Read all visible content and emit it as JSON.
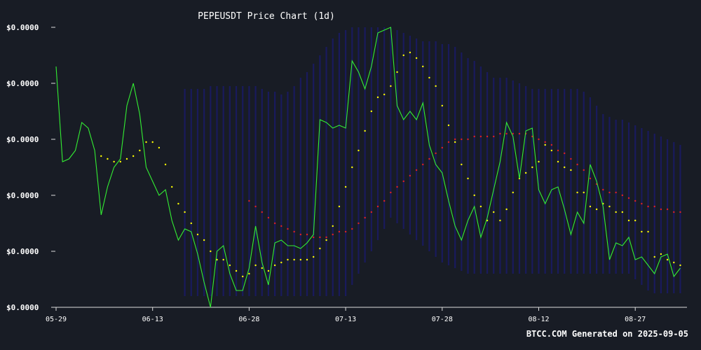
{
  "chart_data": {
    "type": "line",
    "title": "PEPEUSDT Price Chart (1d)",
    "xlabel": "",
    "ylabel": "",
    "grid": false,
    "legend": "none",
    "x_ticks": [
      "05-29",
      "06-13",
      "06-28",
      "07-13",
      "07-28",
      "08-12",
      "08-27"
    ],
    "y_ticks": [
      "$0.0000",
      "$0.0000",
      "$0.0000",
      "$0.0000",
      "$0.0000",
      "$0.0000"
    ],
    "y_index_range": [
      0,
      100
    ],
    "note_units": "y values are relative price levels (0 = bottom tick, 100 = top tick); actual tick labels all read $0.0000",
    "x_dates": [
      "05-29",
      "05-30",
      "05-31",
      "06-01",
      "06-02",
      "06-03",
      "06-04",
      "06-05",
      "06-06",
      "06-07",
      "06-08",
      "06-09",
      "06-10",
      "06-11",
      "06-12",
      "06-13",
      "06-14",
      "06-15",
      "06-16",
      "06-17",
      "06-18",
      "06-19",
      "06-20",
      "06-21",
      "06-22",
      "06-23",
      "06-24",
      "06-25",
      "06-26",
      "06-27",
      "06-28",
      "06-29",
      "06-30",
      "07-01",
      "07-02",
      "07-03",
      "07-04",
      "07-05",
      "07-06",
      "07-07",
      "07-08",
      "07-09",
      "07-10",
      "07-11",
      "07-12",
      "07-13",
      "07-14",
      "07-15",
      "07-16",
      "07-17",
      "07-18",
      "07-19",
      "07-20",
      "07-21",
      "07-22",
      "07-23",
      "07-24",
      "07-25",
      "07-26",
      "07-27",
      "07-28",
      "07-29",
      "07-30",
      "07-31",
      "08-01",
      "08-02",
      "08-03",
      "08-04",
      "08-05",
      "08-06",
      "08-07",
      "08-08",
      "08-09",
      "08-10",
      "08-11",
      "08-12",
      "08-13",
      "08-14",
      "08-15",
      "08-16",
      "08-17",
      "08-18",
      "08-19",
      "08-20",
      "08-21",
      "08-22",
      "08-23",
      "08-24",
      "08-25",
      "08-26",
      "08-27",
      "08-28",
      "08-29",
      "08-30",
      "08-31",
      "09-01",
      "09-02",
      "09-03",
      "09-04"
    ],
    "series": [
      {
        "role": "price",
        "color": "#33ee33",
        "values": [
          86,
          52,
          53,
          56,
          66,
          64,
          56,
          33,
          43,
          50,
          53,
          72,
          80,
          69,
          50,
          45,
          40,
          42,
          31,
          24,
          28,
          27,
          19,
          9,
          0,
          20,
          22,
          12,
          6,
          6,
          14,
          29,
          16,
          8,
          23,
          24,
          22,
          22,
          21,
          23,
          26,
          67,
          66,
          64,
          65,
          64,
          88,
          84,
          78,
          86,
          98,
          99,
          100,
          72,
          67,
          70,
          67,
          73,
          58,
          51,
          48,
          38,
          29,
          24,
          31,
          36,
          25,
          32,
          42,
          52,
          66,
          61,
          46,
          63,
          64,
          42,
          37,
          42,
          43,
          35,
          26,
          34,
          30,
          51,
          45,
          36,
          17,
          23,
          22,
          25,
          17,
          18,
          15,
          12,
          18,
          19,
          11,
          14
        ]
      },
      {
        "role": "moving-average-short",
        "color": "#ffff00",
        "values": [
          null,
          null,
          null,
          null,
          null,
          null,
          null,
          54,
          53,
          52,
          52,
          53,
          54,
          56,
          59,
          59,
          57,
          51,
          43,
          37,
          34,
          30,
          26,
          24,
          20,
          17,
          17,
          15,
          13,
          11,
          12,
          15,
          14,
          13,
          15,
          16,
          17,
          17,
          17,
          17,
          18,
          21,
          24,
          29,
          36,
          43,
          50,
          56,
          63,
          70,
          75,
          76,
          79,
          84,
          90,
          91,
          89,
          86,
          82,
          79,
          72,
          65,
          59,
          51,
          46,
          40,
          36,
          31,
          34,
          31,
          35,
          41,
          46,
          48,
          50,
          52,
          58,
          56,
          52,
          50,
          49,
          41,
          41,
          36,
          35,
          37,
          36,
          34,
          34,
          31,
          31,
          27,
          27,
          18,
          19,
          17,
          16,
          15
        ]
      },
      {
        "role": "moving-average-long",
        "color": "#dd2222",
        "values": [
          null,
          null,
          null,
          null,
          null,
          null,
          null,
          null,
          null,
          null,
          null,
          null,
          null,
          null,
          null,
          null,
          null,
          null,
          null,
          null,
          null,
          null,
          null,
          null,
          null,
          null,
          null,
          null,
          null,
          null,
          38,
          36,
          34,
          32,
          30,
          29,
          28,
          27,
          26,
          26,
          25,
          25,
          25,
          26,
          27,
          27,
          28,
          30,
          32,
          34,
          36,
          38,
          41,
          43,
          45,
          47,
          49,
          51,
          53,
          55,
          57,
          59,
          60,
          60,
          60,
          61,
          61,
          61,
          61,
          62,
          62,
          62,
          62,
          62,
          61,
          60,
          59,
          58,
          56,
          55,
          53,
          51,
          49,
          46,
          44,
          42,
          41,
          41,
          40,
          39,
          38,
          37,
          36,
          36,
          35,
          35,
          34,
          34
        ]
      },
      {
        "role": "bollinger-band",
        "color": "#1a1a70",
        "upper": [
          null,
          null,
          null,
          null,
          null,
          null,
          null,
          null,
          null,
          null,
          null,
          null,
          null,
          null,
          null,
          null,
          null,
          null,
          null,
          null,
          78,
          78,
          78,
          78,
          79,
          79,
          79,
          79,
          79,
          79,
          79,
          79,
          78,
          77,
          77,
          76,
          77,
          79,
          82,
          84,
          87,
          90,
          93,
          96,
          98,
          99,
          100,
          100,
          100,
          100,
          100,
          100,
          100,
          99,
          98,
          97,
          96,
          95,
          95,
          95,
          94,
          94,
          93,
          91,
          89,
          88,
          86,
          84,
          82,
          82,
          82,
          81,
          80,
          79,
          78,
          78,
          78,
          78,
          78,
          78,
          78,
          78,
          77,
          75,
          72,
          69,
          68,
          67,
          67,
          66,
          65,
          64,
          63,
          62,
          61,
          60,
          59,
          58
        ],
        "lower": [
          null,
          null,
          null,
          null,
          null,
          null,
          null,
          null,
          null,
          null,
          null,
          null,
          null,
          null,
          null,
          null,
          null,
          null,
          null,
          null,
          4,
          4,
          4,
          4,
          4,
          4,
          4,
          4,
          4,
          4,
          4,
          4,
          4,
          4,
          4,
          4,
          4,
          4,
          4,
          4,
          4,
          4,
          4,
          4,
          4,
          4,
          8,
          12,
          16,
          20,
          24,
          28,
          32,
          30,
          28,
          26,
          24,
          22,
          20,
          18,
          16,
          15,
          14,
          13,
          12,
          12,
          12,
          12,
          12,
          12,
          12,
          12,
          12,
          12,
          12,
          12,
          12,
          12,
          12,
          12,
          12,
          12,
          12,
          12,
          12,
          12,
          12,
          12,
          12,
          12,
          10,
          8,
          6,
          5,
          5,
          5,
          5,
          5
        ]
      }
    ]
  },
  "footer": {
    "text": "BTCC.COM Generated on 2025-09-05"
  },
  "colors": {
    "background": "#181c25",
    "axis": "#dddddd",
    "text": "#ffffff",
    "band": "#1a1a70"
  }
}
